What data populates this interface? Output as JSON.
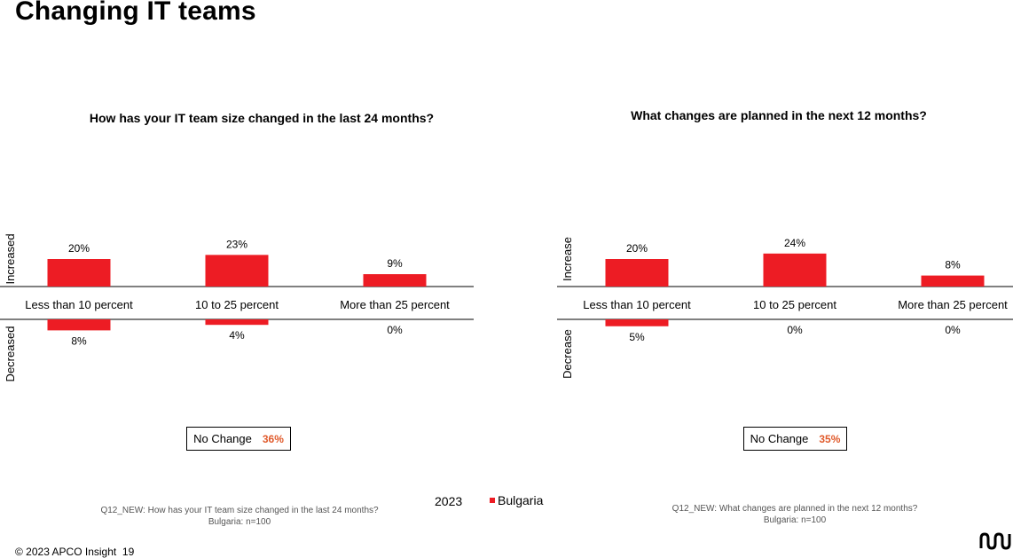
{
  "page": {
    "title": "Changing IT teams",
    "copyright": "© 2023 APCO Insight",
    "page_number": "19"
  },
  "legend": {
    "year": "2023",
    "label": "Bulgaria",
    "color": "#ed1c24"
  },
  "chart_data": [
    {
      "type": "bar",
      "title": "How has your IT team size changed in the last 24 months?",
      "categories": [
        "Less than 10 percent",
        "10 to 25 percent",
        "More than 25 percent"
      ],
      "upper_label": "Increased",
      "lower_label": "Decreased",
      "series": [
        {
          "name": "Increased",
          "values": [
            20,
            23,
            9
          ]
        },
        {
          "name": "Decreased",
          "values": [
            8,
            4,
            0
          ]
        }
      ],
      "value_suffix": "%",
      "no_change_label": "No Change",
      "no_change_value": "36%",
      "footnote_question": "Q12_NEW: How has your IT team size changed in the last 24 months?",
      "footnote_sample": "Bulgaria: n=100"
    },
    {
      "type": "bar",
      "title": "What changes are planned in the next 12 months?",
      "categories": [
        "Less than 10 percent",
        "10 to 25 percent",
        "More than 25 percent"
      ],
      "upper_label": "Increase",
      "lower_label": "Decrease",
      "series": [
        {
          "name": "Increase",
          "values": [
            20,
            24,
            8
          ]
        },
        {
          "name": "Decrease",
          "values": [
            5,
            0,
            0
          ]
        }
      ],
      "value_suffix": "%",
      "no_change_label": "No Change",
      "no_change_value": "35%",
      "footnote_question": "Q12_NEW: What changes are planned in the next 12 months?",
      "footnote_sample": "Bulgaria: n=100"
    }
  ]
}
